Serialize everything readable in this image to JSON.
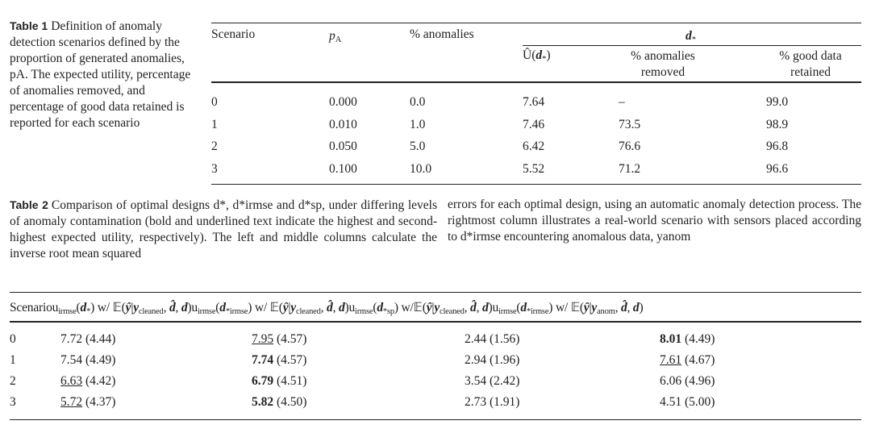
{
  "table1": {
    "label": "Table 1",
    "caption": "Definition of anomaly detection scenarios defined by the proportion of generated anomalies, pA. The expected utility, percentage of anomalies removed, and percentage of good data retained is reported for each scenario",
    "headers": {
      "scenario": "Scenario",
      "pa": "p",
      "pa_sub": "A",
      "anom": "% anomalies",
      "group": "d",
      "group_sub": "*",
      "util": "Û(",
      "util_arg": "d",
      "util_close": ")",
      "removed_1": "% anomalies",
      "removed_2": "removed",
      "good_1": "% good data",
      "good_2": "retained"
    },
    "rows": [
      [
        "0",
        "0.000",
        "0.0",
        "7.64",
        "–",
        "99.0"
      ],
      [
        "1",
        "0.010",
        "1.0",
        "7.46",
        "73.5",
        "98.9"
      ],
      [
        "2",
        "0.050",
        "5.0",
        "6.42",
        "76.6",
        "96.8"
      ],
      [
        "3",
        "0.100",
        "10.0",
        "5.52",
        "71.2",
        "96.6"
      ]
    ]
  },
  "table2": {
    "label": "Table 2",
    "caption_left": "Comparison of optimal designs d*, d*irmse and d*sp, under differing levels of anomaly contamination (bold and underlined text indicate the highest and second-highest expected utility, respectively). The left and middle columns calculate the inverse root mean squared",
    "caption_right": "errors for each optimal design, using an automatic anomaly detection process. The rightmost column illustrates a real-world scenario with sensors placed according to d*irmse encountering anomalous data, yanom",
    "headers": {
      "scenario": "Scenario",
      "u": "u",
      "irmse": "irmse",
      "c1_arg": "*",
      "c2_arg": "*irmse",
      "c3_arg": "*sp",
      "c4_arg": "*irmse",
      "wE": " w/ 𝔼(",
      "wE_nospace": " w/𝔼(",
      "cleaned": "cleaned",
      "anom": "anom"
    },
    "rows": [
      {
        "s": "0",
        "cells": [
          {
            "v": "7.72",
            "p": "(4.44)",
            "st": ""
          },
          {
            "v": "7.95",
            "p": "(4.57)",
            "st": "underline"
          },
          {
            "v": "2.44",
            "p": "(1.56)",
            "st": ""
          },
          {
            "v": "8.01",
            "p": "(4.49)",
            "st": "bold"
          }
        ]
      },
      {
        "s": "1",
        "cells": [
          {
            "v": "7.54",
            "p": "(4.49)",
            "st": ""
          },
          {
            "v": "7.74",
            "p": "(4.57)",
            "st": "bold"
          },
          {
            "v": "2.94",
            "p": "(1.96)",
            "st": ""
          },
          {
            "v": "7.61",
            "p": "(4.67)",
            "st": "underline"
          }
        ]
      },
      {
        "s": "2",
        "cells": [
          {
            "v": "6.63",
            "p": "(4.42)",
            "st": "underline"
          },
          {
            "v": "6.79",
            "p": "(4.51)",
            "st": "bold"
          },
          {
            "v": "3.54",
            "p": "(2.42)",
            "st": ""
          },
          {
            "v": "6.06",
            "p": "(4.96)",
            "st": ""
          }
        ]
      },
      {
        "s": "3",
        "cells": [
          {
            "v": "5.72",
            "p": "(4.37)",
            "st": "underline"
          },
          {
            "v": "5.82",
            "p": "(4.50)",
            "st": "bold"
          },
          {
            "v": "2.73",
            "p": "(1.91)",
            "st": ""
          },
          {
            "v": "4.51",
            "p": "(5.00)",
            "st": ""
          }
        ]
      }
    ]
  }
}
